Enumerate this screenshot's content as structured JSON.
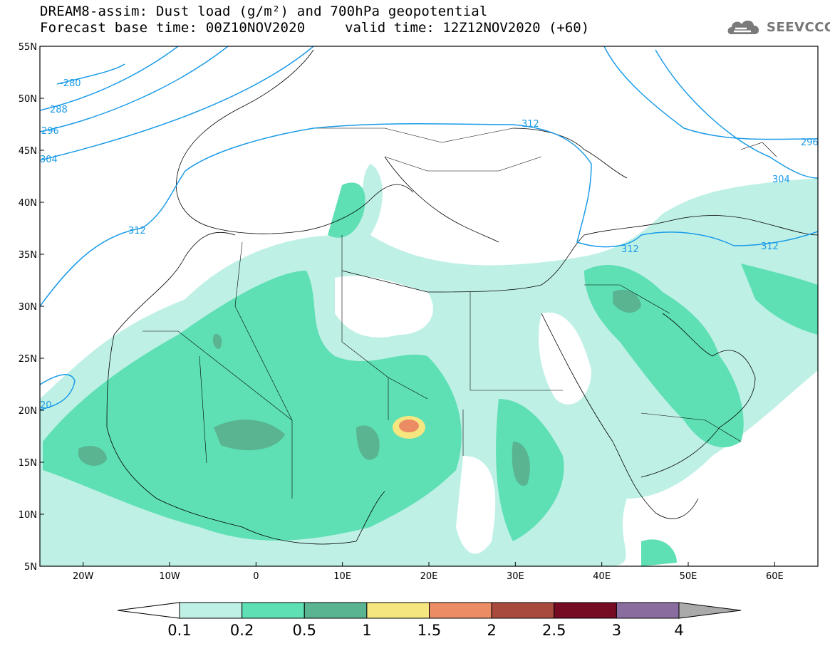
{
  "title": {
    "line1": "DREAM8-assim: Dust load (g/m²) and 700hPa geopotential",
    "line2": "Forecast base time: 00Z10NOV2020",
    "valid": "valid time: 12Z12NOV2020 (+60)"
  },
  "logo": {
    "text": "SEEVCCC",
    "icon": "cloud-logo-icon"
  },
  "axes": {
    "lat_labels": [
      "55N",
      "50N",
      "45N",
      "40N",
      "35N",
      "30N",
      "25N",
      "20N",
      "15N",
      "10N",
      "5N"
    ],
    "lon_labels": [
      "20W",
      "10W",
      "0",
      "10E",
      "20E",
      "30E",
      "40E",
      "50E",
      "60E"
    ],
    "lon_range": [
      -25,
      65
    ],
    "lat_range": [
      5,
      55
    ]
  },
  "colorbar": {
    "labels": [
      "0.1",
      "0.2",
      "0.5",
      "1",
      "1.5",
      "2",
      "2.5",
      "3",
      "4"
    ],
    "colors": [
      "#ffffff",
      "#bff0e6",
      "#5ee0b4",
      "#5ab491",
      "#f5e67f",
      "#eb8c64",
      "#a84b3e",
      "#750c24",
      "#8b6c9f",
      "#aaaaaa"
    ]
  },
  "contours": {
    "color": "#1a9be8",
    "labels": [
      "-280",
      "288",
      "296",
      "304",
      "312",
      "312",
      "312",
      "312",
      "296",
      "304",
      "20"
    ]
  }
}
